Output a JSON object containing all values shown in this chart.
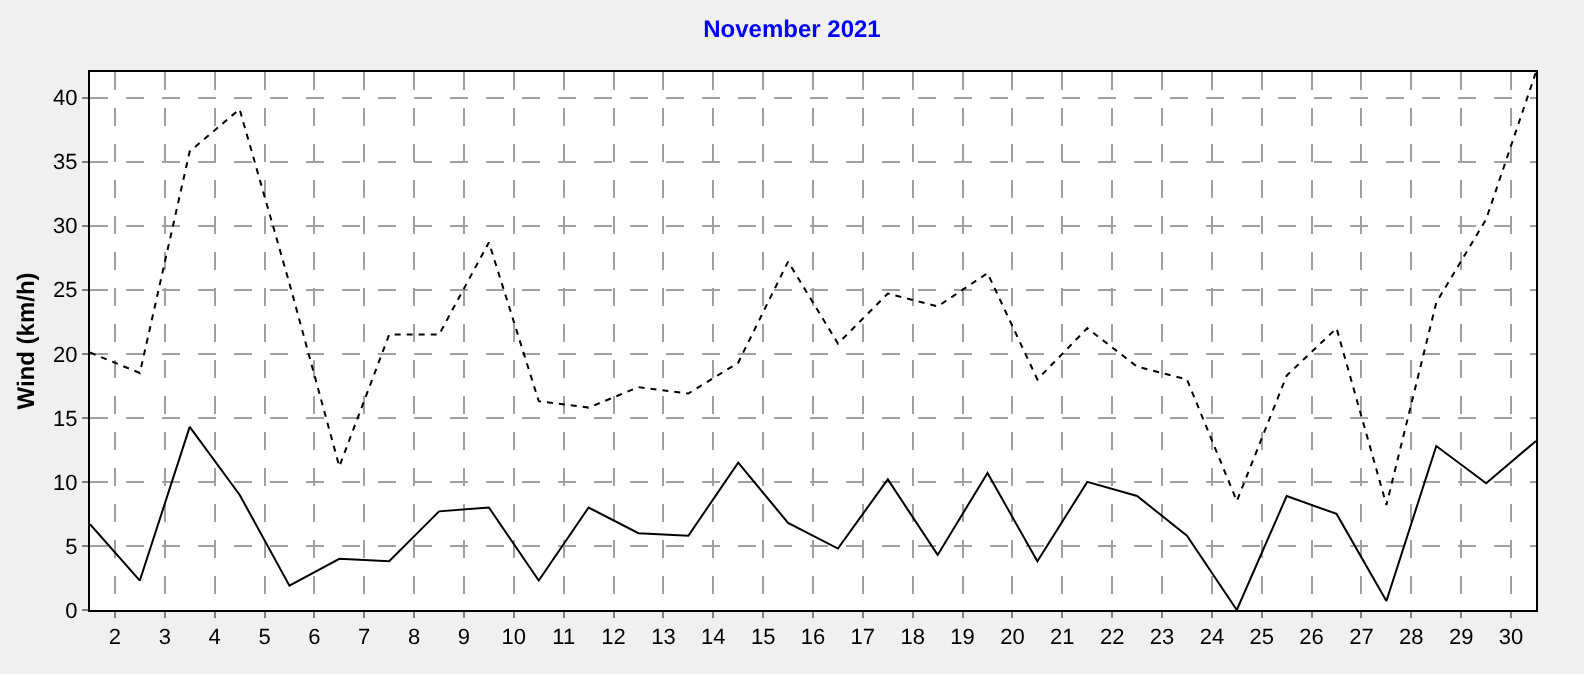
{
  "chart_data": {
    "type": "line",
    "title": "November 2021",
    "ylabel": "Wind (km/h)",
    "x": [
      1.5,
      2.5,
      3.5,
      4.5,
      5.5,
      6.5,
      7.5,
      8.5,
      9.5,
      10.5,
      11.5,
      12.5,
      13.5,
      14.5,
      15.5,
      16.5,
      17.5,
      18.5,
      19.5,
      20.5,
      21.5,
      22.5,
      23.5,
      24.5,
      25.5,
      26.5,
      27.5,
      28.5,
      29.5,
      30.5
    ],
    "series": [
      {
        "color": "#000000",
        "line_style": "solid",
        "values": [
          6.7,
          2.3,
          14.3,
          9,
          1.9,
          4,
          3.8,
          7.7,
          8,
          2.3,
          8,
          6,
          5.8,
          11.5,
          6.8,
          4.8,
          10.2,
          4.3,
          10.7,
          3.8,
          10,
          8.9,
          5.8,
          0,
          8.9,
          7.5,
          0.7,
          12.8,
          9.9,
          13.2
        ]
      },
      {
        "color": "#000000",
        "line_style": "dotted",
        "values": [
          20.1,
          18.5,
          35.8,
          39.1,
          25.5,
          11.2,
          21.5,
          21.5,
          28.7,
          16.3,
          15.8,
          17.4,
          16.9,
          19.3,
          27.2,
          20.8,
          24.7,
          23.7,
          26.3,
          18,
          22,
          19,
          18,
          8.5,
          18.3,
          22,
          8.2,
          24,
          30.5,
          42
        ]
      }
    ],
    "xlim": [
      1.5,
      30.5
    ],
    "xticks": [
      2,
      3,
      4,
      5,
      6,
      7,
      8,
      9,
      10,
      11,
      12,
      13,
      14,
      15,
      16,
      17,
      18,
      19,
      20,
      21,
      22,
      23,
      24,
      25,
      26,
      27,
      28,
      29,
      30
    ],
    "ylim": [
      0,
      42
    ],
    "yticks": [
      0,
      5,
      10,
      15,
      20,
      25,
      30,
      35,
      40
    ],
    "grid": true,
    "marker": "none"
  }
}
